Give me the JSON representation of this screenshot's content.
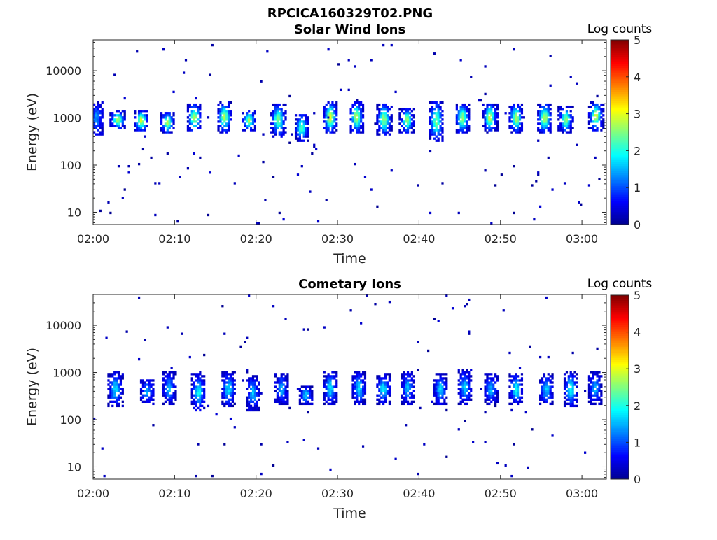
{
  "figure_title": "RPCICA160329T02.PNG",
  "colormap_stops": [
    "#00008f",
    "#0000ff",
    "#0080ff",
    "#00ffff",
    "#80ff80",
    "#ffff00",
    "#ff8000",
    "#ff0000",
    "#800000"
  ],
  "chart_data": [
    {
      "type": "heatmap",
      "title": "Solar Wind Ions",
      "xlabel": "Time",
      "ylabel": "Energy (eV)",
      "x_tick_labels": [
        "02:00",
        "02:10",
        "02:20",
        "02:30",
        "02:40",
        "02:50",
        "03:00"
      ],
      "x_tick_minutes": [
        0,
        10,
        20,
        30,
        40,
        50,
        60
      ],
      "xlim_minutes": [
        0,
        63
      ],
      "y_scale": "log",
      "y_tick_labels": [
        "10",
        "100",
        "1000",
        "10000"
      ],
      "y_ticks": [
        10,
        100,
        1000,
        10000
      ],
      "ylim": [
        5.5,
        45000
      ],
      "colorbar_label": "Log counts",
      "colorbar_tick_labels": [
        "0",
        "1",
        "2",
        "3",
        "4",
        "5"
      ],
      "colorbar_range": [
        0,
        5
      ],
      "bursts": [
        {
          "t": 0.3,
          "e_lo": 400,
          "e_hi": 2200,
          "peak": 1.2
        },
        {
          "t": 2.9,
          "e_lo": 550,
          "e_hi": 1350,
          "peak": 2.6
        },
        {
          "t": 5.8,
          "e_lo": 500,
          "e_hi": 1400,
          "peak": 2.8
        },
        {
          "t": 9.0,
          "e_lo": 450,
          "e_hi": 1300,
          "peak": 2.5
        },
        {
          "t": 12.3,
          "e_lo": 480,
          "e_hi": 2000,
          "peak": 2.6
        },
        {
          "t": 16.0,
          "e_lo": 450,
          "e_hi": 2200,
          "peak": 2.5
        },
        {
          "t": 19.0,
          "e_lo": 500,
          "e_hi": 1400,
          "peak": 2.4
        },
        {
          "t": 22.6,
          "e_lo": 380,
          "e_hi": 2000,
          "peak": 2.4
        },
        {
          "t": 25.5,
          "e_lo": 300,
          "e_hi": 1200,
          "peak": 2.1
        },
        {
          "t": 29.0,
          "e_lo": 450,
          "e_hi": 2200,
          "peak": 2.8
        },
        {
          "t": 32.2,
          "e_lo": 450,
          "e_hi": 2200,
          "peak": 2.6
        },
        {
          "t": 35.6,
          "e_lo": 400,
          "e_hi": 2000,
          "peak": 2.4
        },
        {
          "t": 38.4,
          "e_lo": 450,
          "e_hi": 1600,
          "peak": 2.5
        },
        {
          "t": 42.0,
          "e_lo": 300,
          "e_hi": 2200,
          "peak": 2.3
        },
        {
          "t": 45.2,
          "e_lo": 450,
          "e_hi": 2000,
          "peak": 2.5
        },
        {
          "t": 48.6,
          "e_lo": 480,
          "e_hi": 2000,
          "peak": 2.7
        },
        {
          "t": 51.8,
          "e_lo": 450,
          "e_hi": 2000,
          "peak": 2.6
        },
        {
          "t": 55.3,
          "e_lo": 450,
          "e_hi": 2000,
          "peak": 2.6
        },
        {
          "t": 57.9,
          "e_lo": 450,
          "e_hi": 1700,
          "peak": 2.4
        },
        {
          "t": 61.6,
          "e_lo": 500,
          "e_hi": 2200,
          "peak": 2.6
        }
      ],
      "background_level": 0.4
    },
    {
      "type": "heatmap",
      "title": "Cometary Ions",
      "xlabel": "Time",
      "ylabel": "Energy (eV)",
      "x_tick_labels": [
        "02:00",
        "02:10",
        "02:20",
        "02:30",
        "02:40",
        "02:50",
        "03:00"
      ],
      "x_tick_minutes": [
        0,
        10,
        20,
        30,
        40,
        50,
        60
      ],
      "xlim_minutes": [
        0,
        63
      ],
      "y_scale": "log",
      "y_tick_labels": [
        "10",
        "100",
        "1000",
        "10000"
      ],
      "y_ticks": [
        10,
        100,
        1000,
        10000
      ],
      "ylim": [
        5.5,
        45000
      ],
      "colorbar_label": "Log counts",
      "colorbar_tick_labels": [
        "0",
        "1",
        "2",
        "3",
        "4",
        "5"
      ],
      "colorbar_range": [
        0,
        5
      ],
      "bursts": [
        {
          "t": 2.6,
          "e_lo": 180,
          "e_hi": 1000,
          "peak": 1.5
        },
        {
          "t": 6.5,
          "e_lo": 200,
          "e_hi": 700,
          "peak": 1.3
        },
        {
          "t": 9.2,
          "e_lo": 200,
          "e_hi": 1000,
          "peak": 1.4
        },
        {
          "t": 12.8,
          "e_lo": 150,
          "e_hi": 900,
          "peak": 1.7
        },
        {
          "t": 16.5,
          "e_lo": 180,
          "e_hi": 1000,
          "peak": 1.5
        },
        {
          "t": 19.5,
          "e_lo": 150,
          "e_hi": 800,
          "peak": 1.4
        },
        {
          "t": 23.0,
          "e_lo": 200,
          "e_hi": 900,
          "peak": 1.3
        },
        {
          "t": 26.0,
          "e_lo": 200,
          "e_hi": 500,
          "peak": 1.4
        },
        {
          "t": 29.0,
          "e_lo": 200,
          "e_hi": 1000,
          "peak": 1.6
        },
        {
          "t": 32.5,
          "e_lo": 200,
          "e_hi": 1000,
          "peak": 1.5
        },
        {
          "t": 35.5,
          "e_lo": 200,
          "e_hi": 900,
          "peak": 1.6
        },
        {
          "t": 38.5,
          "e_lo": 200,
          "e_hi": 1000,
          "peak": 1.4
        },
        {
          "t": 42.5,
          "e_lo": 200,
          "e_hi": 900,
          "peak": 1.5
        },
        {
          "t": 45.5,
          "e_lo": 200,
          "e_hi": 1100,
          "peak": 1.4
        },
        {
          "t": 48.7,
          "e_lo": 200,
          "e_hi": 900,
          "peak": 1.3
        },
        {
          "t": 51.8,
          "e_lo": 200,
          "e_hi": 900,
          "peak": 1.7
        },
        {
          "t": 55.5,
          "e_lo": 200,
          "e_hi": 900,
          "peak": 1.4
        },
        {
          "t": 58.5,
          "e_lo": 180,
          "e_hi": 1000,
          "peak": 1.8
        },
        {
          "t": 61.5,
          "e_lo": 200,
          "e_hi": 1000,
          "peak": 1.3
        }
      ],
      "background_level": 0.4
    }
  ]
}
